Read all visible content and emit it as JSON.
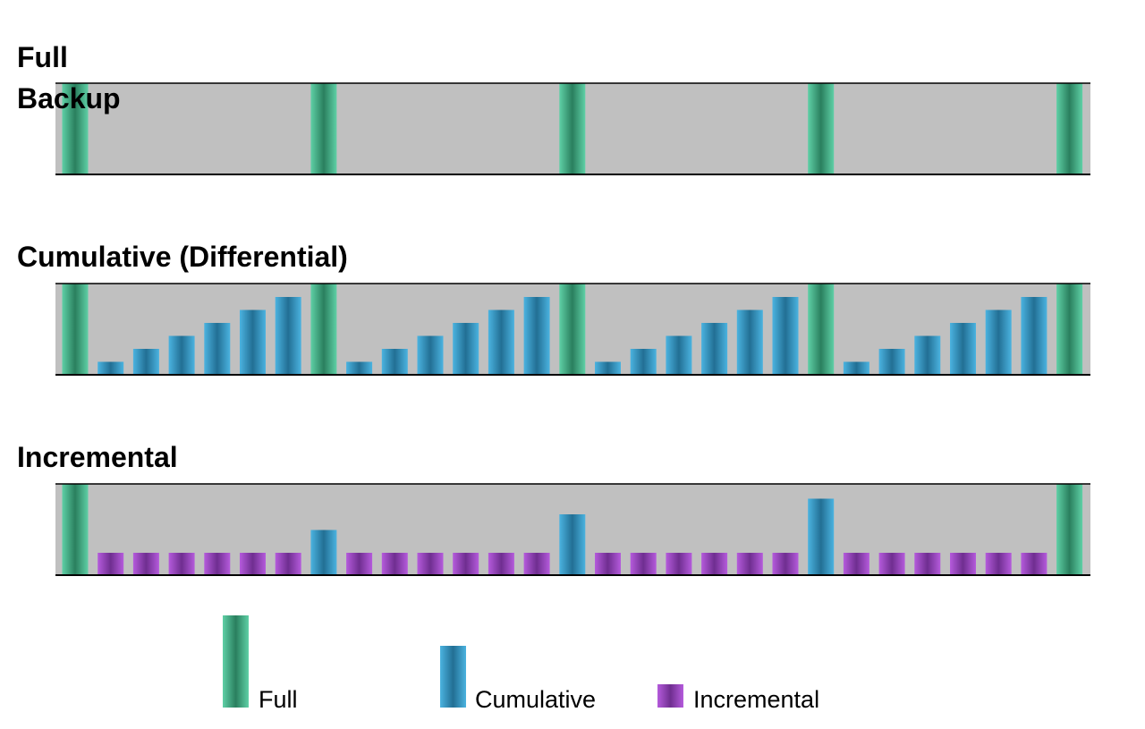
{
  "panels": [
    {
      "title": "Full\nBackup",
      "bars": [
        "F",
        "",
        "",
        "",
        "",
        "",
        "",
        "F",
        "",
        "",
        "",
        "",
        "",
        "",
        "F",
        "",
        "",
        "",
        "",
        "",
        "",
        "F",
        "",
        "",
        "",
        "",
        "",
        "",
        "F"
      ]
    },
    {
      "title": "Cumulative (Differential)",
      "bars": [
        "F",
        1,
        2,
        3,
        4,
        5,
        6,
        "F",
        1,
        2,
        3,
        4,
        5,
        6,
        "F",
        1,
        2,
        3,
        4,
        5,
        6,
        "F",
        1,
        2,
        3,
        4,
        5,
        6,
        "F"
      ]
    },
    {
      "title": "Incremental",
      "bars": [
        "F",
        "I",
        "I",
        "I",
        "I",
        "I",
        "I",
        "C1",
        "I",
        "I",
        "I",
        "I",
        "I",
        "I",
        "C2",
        "I",
        "I",
        "I",
        "I",
        "I",
        "I",
        "C3",
        "I",
        "I",
        "I",
        "I",
        "I",
        "I",
        "F"
      ]
    }
  ],
  "legend": {
    "full": "Full",
    "cumulative": "Cumulative",
    "incremental": "Incremental"
  },
  "colors": {
    "panel_bg": "#c0c0c0",
    "full": "#3fbf8c",
    "full_dark": "#2a7f5e",
    "cumulative": "#3aa0cf",
    "cumulative_dark": "#226f94",
    "incremental": "#a84bd0",
    "incremental_dark": "#6f2e90"
  }
}
